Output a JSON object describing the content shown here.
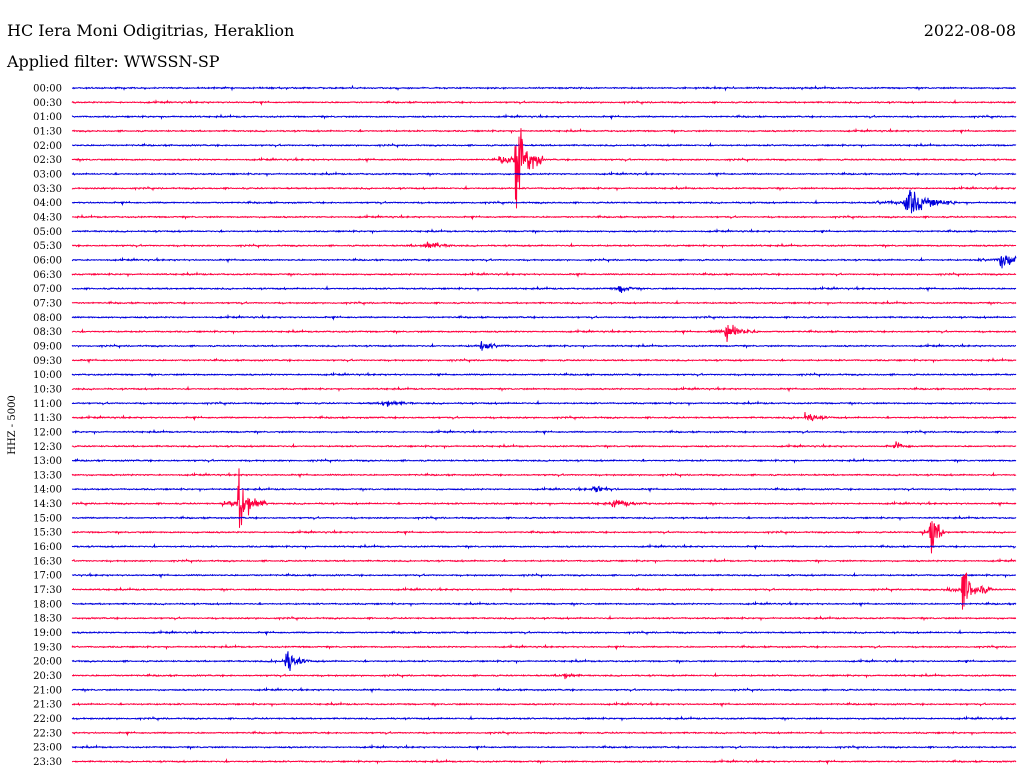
{
  "header": {
    "station": "HC Iera Moni Odigitrias, Heraklion",
    "date": "2022-08-08",
    "filter": "Applied filter: WWSSN-SP"
  },
  "chart_data": {
    "type": "line",
    "title": "HC Iera Moni Odigitrias, Heraklion",
    "subtitle": "Applied filter: WWSSN-SP",
    "date": "2022-08-08",
    "ylabel": "HHZ - 5000",
    "grid": false,
    "colors": [
      "#0000dd",
      "#ff0040"
    ],
    "rows": [
      "00:00",
      "00:30",
      "01:00",
      "01:30",
      "02:00",
      "02:30",
      "03:00",
      "03:30",
      "04:00",
      "04:30",
      "05:00",
      "05:30",
      "06:00",
      "06:30",
      "07:00",
      "07:30",
      "08:00",
      "08:30",
      "09:00",
      "09:30",
      "10:00",
      "10:30",
      "11:00",
      "11:30",
      "12:00",
      "12:30",
      "13:00",
      "13:30",
      "14:00",
      "14:30",
      "15:00",
      "15:30",
      "16:00",
      "16:30",
      "17:00",
      "17:30",
      "18:00",
      "18:30",
      "19:00",
      "19:30",
      "20:00",
      "20:30",
      "21:00",
      "21:30",
      "22:00",
      "22:30",
      "23:00",
      "23:30"
    ],
    "events": [
      {
        "row": 5,
        "minute": 14.1,
        "amplitude": 70,
        "duration": 0.9
      },
      {
        "row": 8,
        "minute": 26.5,
        "amplitude": 24,
        "duration": 1.6
      },
      {
        "row": 11,
        "minute": 11.2,
        "amplitude": 8,
        "duration": 1.0
      },
      {
        "row": 12,
        "minute": 29.5,
        "amplitude": 14,
        "duration": 1.2
      },
      {
        "row": 14,
        "minute": 17.4,
        "amplitude": 8,
        "duration": 0.6
      },
      {
        "row": 17,
        "minute": 20.8,
        "amplitude": 18,
        "duration": 1.0
      },
      {
        "row": 18,
        "minute": 13.0,
        "amplitude": 7,
        "duration": 0.9
      },
      {
        "row": 22,
        "minute": 9.9,
        "amplitude": 6,
        "duration": 1.0
      },
      {
        "row": 23,
        "minute": 23.3,
        "amplitude": 8,
        "duration": 0.9
      },
      {
        "row": 25,
        "minute": 26.2,
        "amplitude": 6,
        "duration": 0.6
      },
      {
        "row": 28,
        "minute": 16.6,
        "amplitude": 7,
        "duration": 0.8
      },
      {
        "row": 29,
        "minute": 5.3,
        "amplitude": 45,
        "duration": 0.9
      },
      {
        "row": 29,
        "minute": 17.2,
        "amplitude": 7,
        "duration": 1.2
      },
      {
        "row": 31,
        "minute": 27.3,
        "amplitude": 42,
        "duration": 0.5
      },
      {
        "row": 35,
        "minute": 28.3,
        "amplitude": 32,
        "duration": 1.0
      },
      {
        "row": 40,
        "minute": 6.8,
        "amplitude": 20,
        "duration": 0.8
      },
      {
        "row": 41,
        "minute": 15.6,
        "amplitude": 6,
        "duration": 0.6
      }
    ]
  }
}
